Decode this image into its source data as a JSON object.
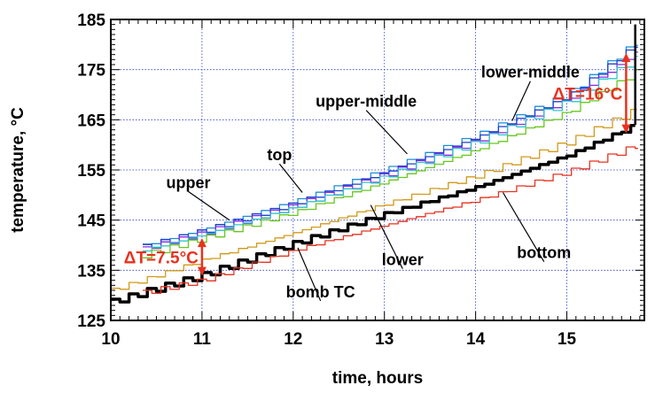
{
  "chart_data": {
    "type": "line",
    "title": "",
    "xlabel": "time, hours",
    "ylabel": "temperature, °C",
    "xlim": [
      10,
      15.85
    ],
    "ylim": [
      125,
      185
    ],
    "xticks": [
      10,
      11,
      12,
      13,
      14,
      15
    ],
    "yticks": [
      125,
      135,
      145,
      155,
      165,
      175,
      185
    ],
    "grid": true,
    "annotation_color": "#e8321e",
    "series": [
      {
        "name": "top",
        "color": "#1a8fd6",
        "x": [
          10.35,
          11,
          12,
          13,
          14,
          15,
          15.78
        ],
        "y": [
          140.0,
          143.2,
          148.8,
          155.0,
          161.8,
          170.0,
          180.8
        ]
      },
      {
        "name": "upper",
        "color": "#1f3fd0",
        "x": [
          10.35,
          11,
          12,
          13,
          14,
          15,
          15.78
        ],
        "y": [
          139.6,
          142.8,
          148.3,
          154.6,
          161.5,
          169.6,
          180.3
        ]
      },
      {
        "name": "upper-middle",
        "color": "#8a2be2",
        "x": [
          10.35,
          11,
          12,
          13,
          14,
          15,
          15.78
        ],
        "y": [
          139.3,
          142.4,
          147.8,
          154.0,
          160.8,
          168.9,
          178.8
        ]
      },
      {
        "name": "lower-middle",
        "color": "#2fc7c7",
        "x": [
          10.35,
          11,
          12,
          13,
          14,
          15,
          15.78
        ],
        "y": [
          139.0,
          142.1,
          147.5,
          153.7,
          160.5,
          168.6,
          177.5
        ]
      },
      {
        "name": "",
        "color": "#66c81e",
        "x": [
          10.35,
          11,
          12,
          13,
          14,
          15,
          15.78
        ],
        "y": [
          138.0,
          141.3,
          146.5,
          152.6,
          159.0,
          166.5,
          174.8
        ]
      },
      {
        "name": "lower",
        "color": "#d19a1a",
        "x": [
          10,
          11,
          12,
          13,
          14,
          15,
          15.78
        ],
        "y": [
          131.0,
          137.0,
          142.5,
          148.2,
          153.8,
          160.5,
          167.2
        ]
      },
      {
        "name": "bomb TC",
        "color": "#000000",
        "x": [
          10,
          11,
          12,
          13,
          14,
          15,
          15.75
        ],
        "y": [
          128.7,
          134.0,
          140.3,
          146.2,
          151.6,
          157.9,
          164.0
        ]
      },
      {
        "name": "bottom",
        "color": "#e8321e",
        "x": [
          10.35,
          11,
          12,
          13,
          14,
          15,
          15.78
        ],
        "y": [
          130.5,
          133.0,
          139.0,
          144.0,
          149.0,
          154.6,
          160.0
        ]
      }
    ],
    "annotations": [
      {
        "text": "lower-middle",
        "x": 14.6,
        "y": 173.4,
        "target_x": 14.4,
        "target_y": 164.8
      },
      {
        "text": "upper-middle",
        "x": 12.8,
        "y": 167.6,
        "target_x": 13.25,
        "target_y": 158.2
      },
      {
        "text": "top",
        "x": 11.85,
        "y": 156.9,
        "target_x": 12.1,
        "target_y": 150.5
      },
      {
        "text": "upper",
        "x": 10.85,
        "y": 151.4,
        "target_x": 11.3,
        "target_y": 145.0
      },
      {
        "text": "lower",
        "x": 13.2,
        "y": 136.0,
        "target_x": 12.85,
        "target_y": 148.0
      },
      {
        "text": "bottom",
        "x": 14.75,
        "y": 137.4,
        "target_x": 14.3,
        "target_y": 150.5
      },
      {
        "text": "bomb TC",
        "x": 12.3,
        "y": 129.6,
        "target_x": 12.05,
        "target_y": 139.5
      }
    ],
    "delta_markers": [
      {
        "text": "ΔT=7.5°C",
        "x": 11.0,
        "y_low": 133.9,
        "y_high": 141.4
      },
      {
        "text": "ΔT=16°C",
        "x": 15.65,
        "y_low": 162.3,
        "y_high": 178.3
      }
    ]
  }
}
